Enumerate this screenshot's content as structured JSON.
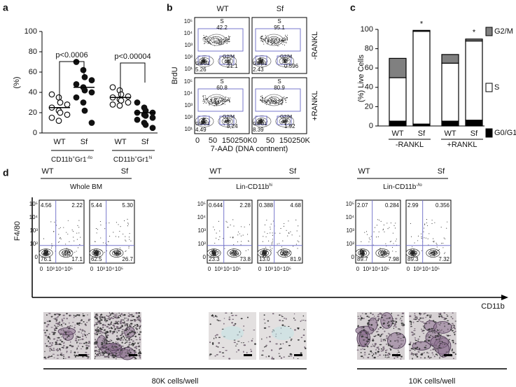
{
  "panel_labels": [
    "a",
    "b",
    "c",
    "d"
  ],
  "chart_data": [
    {
      "type": "scatter",
      "ylabel": "(%)",
      "ylim": [
        0,
        100
      ],
      "yticks": [
        0,
        20,
        40,
        60,
        80,
        100
      ],
      "categories": [
        "WT",
        "Sf",
        "WT",
        "Sf"
      ],
      "values": [
        [
          38,
          35,
          30,
          28,
          25,
          22,
          20,
          18,
          15,
          12
        ],
        [
          70,
          62,
          55,
          52,
          48,
          45,
          42,
          40,
          35,
          30,
          22,
          10
        ],
        [
          45,
          42,
          38,
          36,
          35,
          33,
          32,
          30,
          28,
          27
        ],
        [
          30,
          25,
          22,
          20,
          20,
          18,
          17,
          15,
          13,
          10,
          8,
          5
        ]
      ],
      "means": [
        25,
        45,
        35,
        20
      ],
      "filled": [
        false,
        true,
        false,
        true
      ],
      "annotations": [
        "p<0.0006",
        "p<0.00004"
      ],
      "group_labels": [
        {
          "base": "CD11b",
          "sup1": "+",
          "mid": "Gr1",
          "sup2": "-/lo"
        },
        {
          "base": "CD11b",
          "sup1": "+",
          "mid": "Gr1",
          "sup2": "hi"
        }
      ]
    },
    {
      "type": "bar",
      "stacked": true,
      "ylabel": "(%) Live Cells",
      "ylim": [
        0,
        100
      ],
      "yticks": [
        0,
        20,
        40,
        60,
        80,
        100
      ],
      "categories": [
        "WT",
        "Sf",
        "WT",
        "Sf"
      ],
      "group_labels": [
        "-RANKL",
        "+RANKL"
      ],
      "series": [
        {
          "name": "G0/G1",
          "color": "#000000",
          "values": [
            5,
            2,
            5,
            6
          ]
        },
        {
          "name": "S",
          "color": "#ffffff",
          "values": [
            45,
            96,
            60,
            82
          ]
        },
        {
          "name": "G2/M",
          "color": "#808080",
          "values": [
            20,
            1,
            9,
            2
          ]
        }
      ],
      "annotations": [
        "*",
        "*"
      ]
    }
  ],
  "panel_b": {
    "columns": [
      "WT",
      "Sf"
    ],
    "rows": [
      "-RANKL",
      "+RANKL"
    ],
    "ylabel": "BrdU",
    "xlabel": "7-AAD (DNA contnent)",
    "yticks": [
      "10⁵",
      "10⁴",
      "10³",
      "10²",
      "10¹"
    ],
    "xticks": [
      "0",
      "50",
      "150",
      "250K"
    ],
    "gate_names": {
      "s": "S",
      "g0": "G0/G1",
      "g2": "G2/M"
    },
    "plots": [
      {
        "s": 42.2,
        "g0": 5.26,
        "g2": 21.1
      },
      {
        "s": 95.1,
        "g0": 2.43,
        "g2": 0.596
      },
      {
        "s": 60.8,
        "g0": 4.49,
        "g2": "8,24"
      },
      {
        "s": 80.9,
        "g0": 8.39,
        "g2": 1.92
      }
    ]
  },
  "panel_d": {
    "conditions": [
      "WT",
      "Sf"
    ],
    "ylabel": "F4/80",
    "xlabel": "CD11b",
    "groups": [
      {
        "base": "Whole BM"
      },
      {
        "base": "Lin-CD11b",
        "sup": "hi"
      },
      {
        "base": "Lin-CD11b",
        "sup": "-/lo"
      }
    ],
    "yticks": [
      "10⁵",
      "10⁴",
      "10³",
      "10²",
      "0"
    ],
    "xticks": [
      "0",
      "10³",
      "10⁴",
      "10⁵"
    ],
    "plots": [
      {
        "ul": 4.56,
        "ur": 2.22,
        "ll": 76.1,
        "lr": 17.1
      },
      {
        "ul": 5.44,
        "ur": "5.30",
        "ll": 62.5,
        "lr": 26.7
      },
      {
        "ul": 0.644,
        "ur": 2.28,
        "ll": 23.3,
        "lr": 73.8
      },
      {
        "ul": 0.388,
        "ur": 4.68,
        "ll": "13.0",
        "lr": 81.9
      },
      {
        "ul": 2.07,
        "ur": 0.284,
        "ll": 89.7,
        "lr": 7.98
      },
      {
        "ul": 2.99,
        "ur": 0.356,
        "ll": 89.3,
        "lr": 7.32
      }
    ],
    "cell_labels": [
      "80K cells/well",
      "10K cells/well"
    ]
  }
}
